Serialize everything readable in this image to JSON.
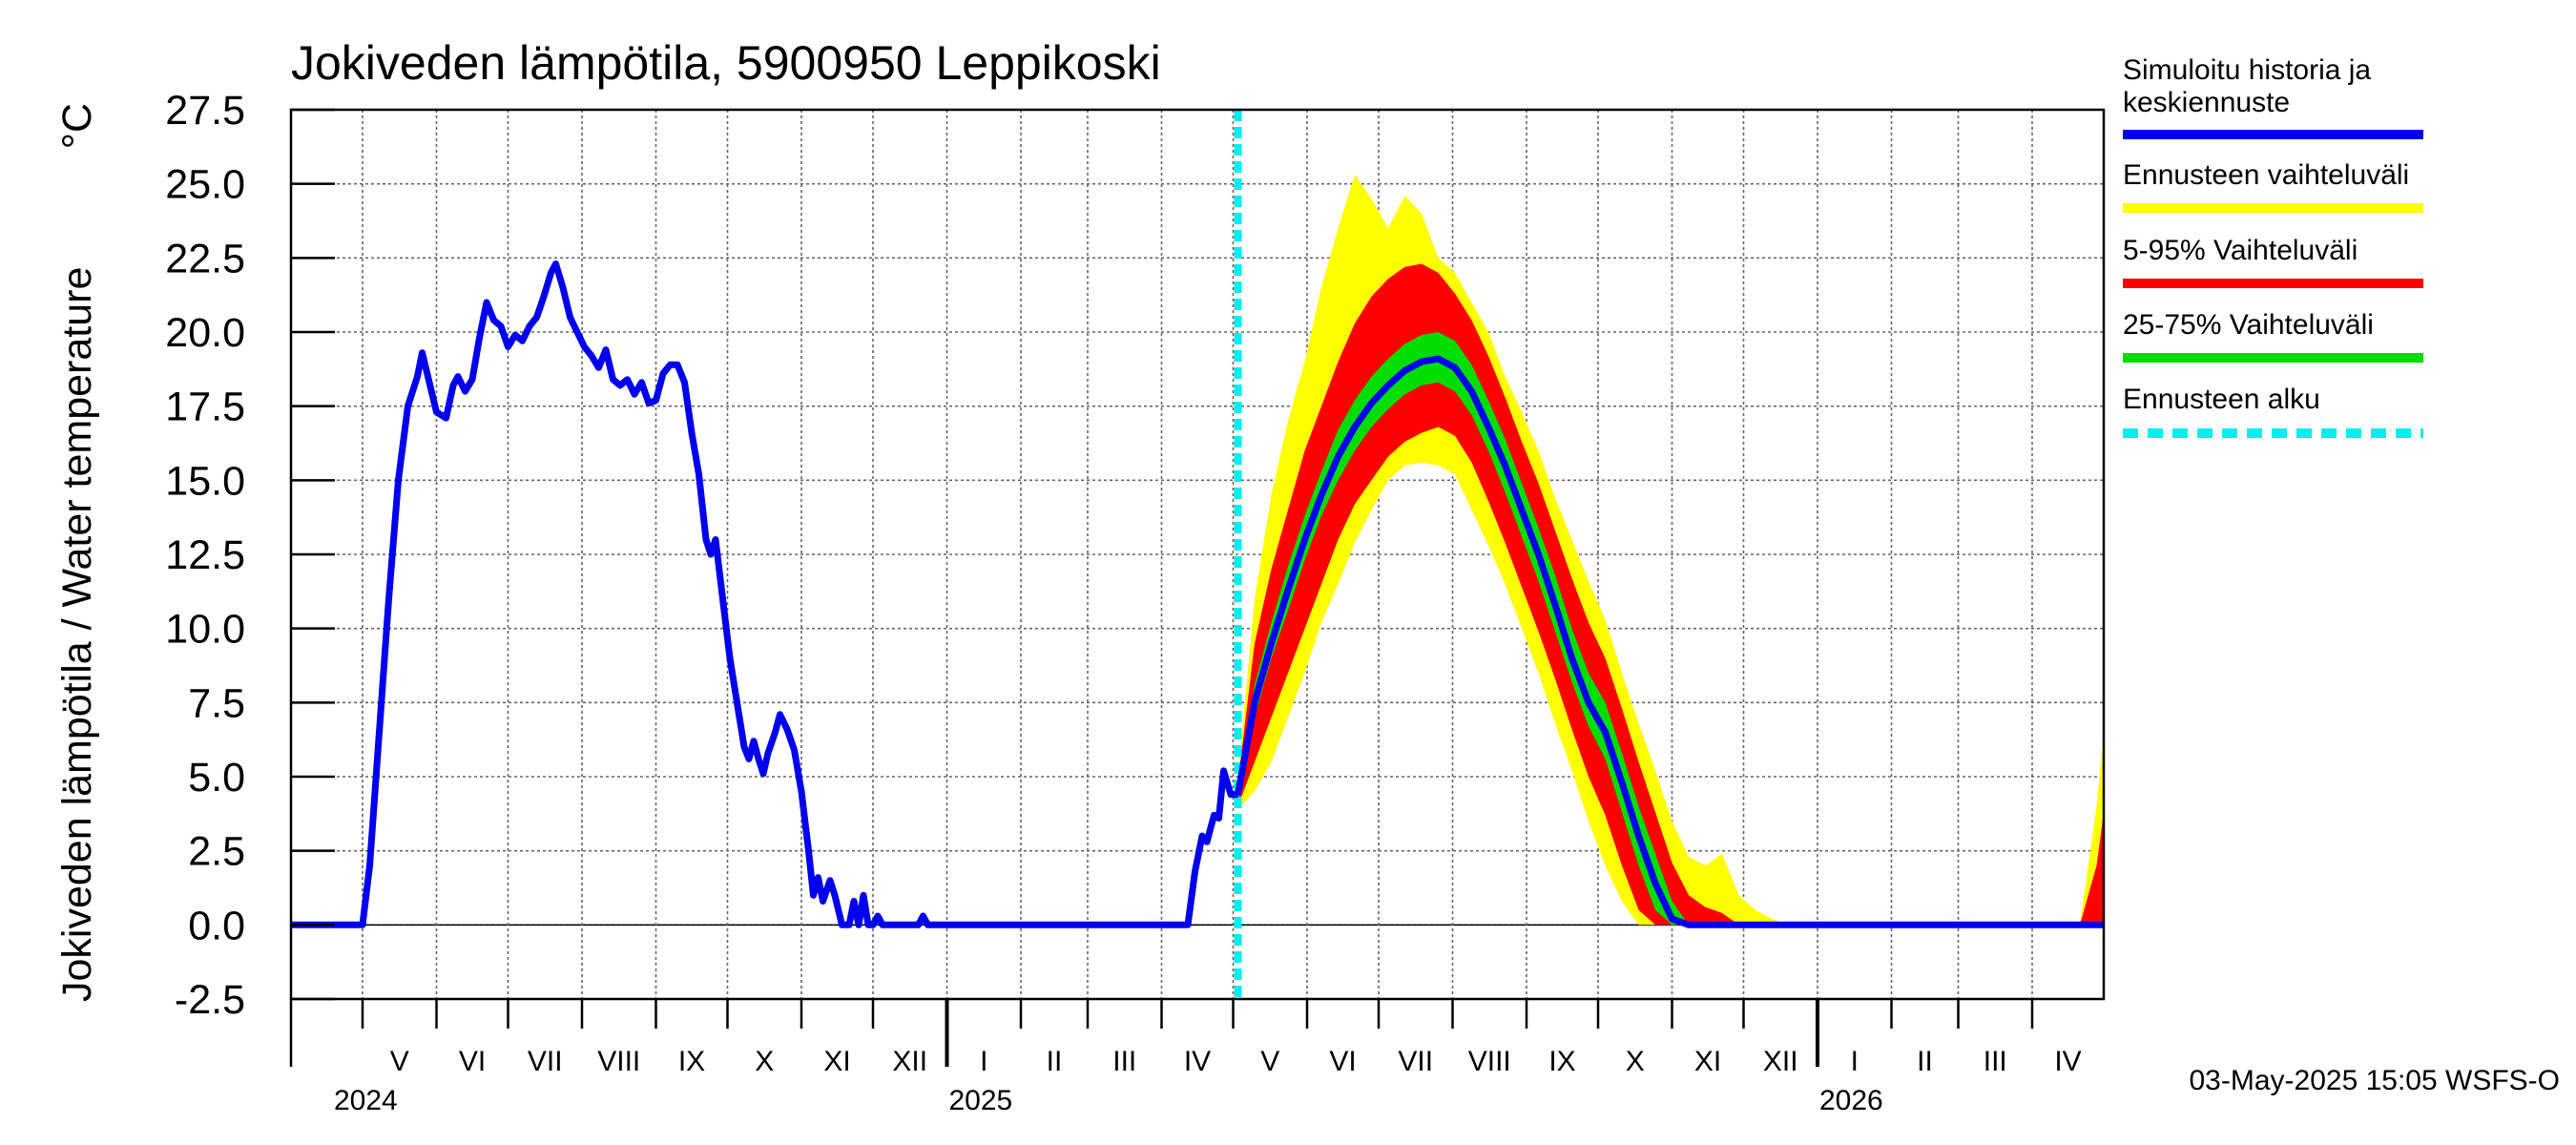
{
  "chart_data": {
    "type": "line",
    "title": "Jokiveden lämpötila, 5900950 Leppikoski",
    "ylabel": "Jokiveden lämpötila / Water temperature",
    "yunit": "°C",
    "ylim": [
      -2.5,
      27.5
    ],
    "yticks": [
      "27.5",
      "25.0",
      "22.5",
      "20.0",
      "17.5",
      "15.0",
      "12.5",
      "10.0",
      "7.5",
      "5.0",
      "2.5",
      "0.0",
      "-2.5"
    ],
    "xlim": [
      "2024-04-01",
      "2026-05-01"
    ],
    "months": [
      {
        "label": "V",
        "start": "2024-05-01"
      },
      {
        "label": "VI",
        "start": "2024-06-01"
      },
      {
        "label": "VII",
        "start": "2024-07-01"
      },
      {
        "label": "VIII",
        "start": "2024-08-01"
      },
      {
        "label": "IX",
        "start": "2024-09-01"
      },
      {
        "label": "X",
        "start": "2024-10-01"
      },
      {
        "label": "XI",
        "start": "2024-11-01"
      },
      {
        "label": "XII",
        "start": "2024-12-01"
      },
      {
        "label": "I",
        "start": "2025-01-01"
      },
      {
        "label": "II",
        "start": "2025-02-01"
      },
      {
        "label": "III",
        "start": "2025-03-01"
      },
      {
        "label": "IV",
        "start": "2025-04-01"
      },
      {
        "label": "V",
        "start": "2025-05-01"
      },
      {
        "label": "VI",
        "start": "2025-06-01"
      },
      {
        "label": "VII",
        "start": "2025-07-01"
      },
      {
        "label": "VIII",
        "start": "2025-08-01"
      },
      {
        "label": "IX",
        "start": "2025-09-01"
      },
      {
        "label": "X",
        "start": "2025-10-01"
      },
      {
        "label": "XI",
        "start": "2025-11-01"
      },
      {
        "label": "XII",
        "start": "2025-12-01"
      },
      {
        "label": "I",
        "start": "2026-01-01"
      },
      {
        "label": "II",
        "start": "2026-02-01"
      },
      {
        "label": "III",
        "start": "2026-03-01"
      },
      {
        "label": "IV",
        "start": "2026-04-01"
      }
    ],
    "years": [
      {
        "label": "2024",
        "start": "2024-04-01"
      },
      {
        "label": "2025",
        "start": "2025-01-01"
      },
      {
        "label": "2026",
        "start": "2026-01-01"
      }
    ],
    "forecast_start": "2025-05-03",
    "grid": true,
    "legend_position": "right",
    "legend": [
      {
        "label": "Simuloitu historia ja keskiennuste",
        "color": "#0000ee",
        "style": "solid"
      },
      {
        "label": "Ennusteen vaihteluväli",
        "color": "#ffff00",
        "style": "solid"
      },
      {
        "label": "5-95% Vaihteluväli",
        "color": "#ff0000",
        "style": "solid"
      },
      {
        "label": "25-75% Vaihteluväli",
        "color": "#00dd00",
        "style": "solid"
      },
      {
        "label": "Ennusteen alku",
        "color": "#00eeee",
        "style": "dashed"
      }
    ],
    "history": [
      [
        "2024-04-01",
        0
      ],
      [
        "2024-05-01",
        0
      ],
      [
        "2024-05-04",
        2.0
      ],
      [
        "2024-05-08",
        6.5
      ],
      [
        "2024-05-12",
        11.0
      ],
      [
        "2024-05-16",
        15.0
      ],
      [
        "2024-05-20",
        17.5
      ],
      [
        "2024-05-24",
        18.5
      ],
      [
        "2024-05-26",
        19.3
      ],
      [
        "2024-05-29",
        18.3
      ],
      [
        "2024-06-01",
        17.3
      ],
      [
        "2024-06-05",
        17.1
      ],
      [
        "2024-06-08",
        18.2
      ],
      [
        "2024-06-10",
        18.5
      ],
      [
        "2024-06-13",
        18.0
      ],
      [
        "2024-06-16",
        18.4
      ],
      [
        "2024-06-19",
        19.8
      ],
      [
        "2024-06-22",
        21.0
      ],
      [
        "2024-06-25",
        20.4
      ],
      [
        "2024-06-28",
        20.2
      ],
      [
        "2024-07-01",
        19.5
      ],
      [
        "2024-07-04",
        19.9
      ],
      [
        "2024-07-07",
        19.7
      ],
      [
        "2024-07-10",
        20.2
      ],
      [
        "2024-07-13",
        20.5
      ],
      [
        "2024-07-16",
        21.2
      ],
      [
        "2024-07-19",
        22.0
      ],
      [
        "2024-07-21",
        22.3
      ],
      [
        "2024-07-24",
        21.5
      ],
      [
        "2024-07-27",
        20.5
      ],
      [
        "2024-07-30",
        20.0
      ],
      [
        "2024-08-02",
        19.5
      ],
      [
        "2024-08-05",
        19.2
      ],
      [
        "2024-08-08",
        18.8
      ],
      [
        "2024-08-11",
        19.4
      ],
      [
        "2024-08-14",
        18.4
      ],
      [
        "2024-08-17",
        18.2
      ],
      [
        "2024-08-20",
        18.4
      ],
      [
        "2024-08-23",
        17.9
      ],
      [
        "2024-08-26",
        18.3
      ],
      [
        "2024-08-29",
        17.6
      ],
      [
        "2024-09-01",
        17.7
      ],
      [
        "2024-09-04",
        18.6
      ],
      [
        "2024-09-07",
        18.9
      ],
      [
        "2024-09-10",
        18.9
      ],
      [
        "2024-09-13",
        18.3
      ],
      [
        "2024-09-16",
        16.6
      ],
      [
        "2024-09-19",
        15.2
      ],
      [
        "2024-09-22",
        13.0
      ],
      [
        "2024-09-24",
        12.5
      ],
      [
        "2024-09-26",
        13.0
      ],
      [
        "2024-09-29",
        11.0
      ],
      [
        "2024-10-02",
        9.0
      ],
      [
        "2024-10-05",
        7.5
      ],
      [
        "2024-10-08",
        6.0
      ],
      [
        "2024-10-10",
        5.6
      ],
      [
        "2024-10-12",
        6.2
      ],
      [
        "2024-10-14",
        5.6
      ],
      [
        "2024-10-16",
        5.1
      ],
      [
        "2024-10-18",
        5.8
      ],
      [
        "2024-10-21",
        6.5
      ],
      [
        "2024-10-23",
        7.1
      ],
      [
        "2024-10-26",
        6.6
      ],
      [
        "2024-10-29",
        5.9
      ],
      [
        "2024-11-01",
        4.5
      ],
      [
        "2024-11-04",
        2.5
      ],
      [
        "2024-11-06",
        1.0
      ],
      [
        "2024-11-08",
        1.6
      ],
      [
        "2024-11-10",
        0.8
      ],
      [
        "2024-11-13",
        1.5
      ],
      [
        "2024-11-15",
        1.0
      ],
      [
        "2024-11-18",
        0.0
      ],
      [
        "2024-11-21",
        0.0
      ],
      [
        "2024-11-23",
        0.8
      ],
      [
        "2024-11-25",
        0.0
      ],
      [
        "2024-11-27",
        1.0
      ],
      [
        "2024-11-29",
        0.0
      ],
      [
        "2024-12-01",
        0.0
      ],
      [
        "2024-12-03",
        0.3
      ],
      [
        "2024-12-05",
        0.0
      ],
      [
        "2024-12-20",
        0.0
      ],
      [
        "2024-12-22",
        0.3
      ],
      [
        "2024-12-24",
        0.0
      ],
      [
        "2025-04-12",
        0.0
      ],
      [
        "2025-04-15",
        1.8
      ],
      [
        "2025-04-18",
        3.0
      ],
      [
        "2025-04-20",
        2.8
      ],
      [
        "2025-04-23",
        3.7
      ],
      [
        "2025-04-25",
        3.6
      ],
      [
        "2025-04-27",
        5.2
      ],
      [
        "2025-04-30",
        4.4
      ],
      [
        "2025-05-03",
        4.4
      ]
    ],
    "forecast_dates": [
      "2025-05-03",
      "2025-05-10",
      "2025-05-17",
      "2025-05-24",
      "2025-05-31",
      "2025-06-07",
      "2025-06-14",
      "2025-06-21",
      "2025-06-28",
      "2025-07-05",
      "2025-07-12",
      "2025-07-19",
      "2025-07-26",
      "2025-08-02",
      "2025-08-09",
      "2025-08-16",
      "2025-08-23",
      "2025-08-30",
      "2025-09-06",
      "2025-09-13",
      "2025-09-20",
      "2025-09-27",
      "2025-10-04",
      "2025-10-11",
      "2025-10-18",
      "2025-10-25",
      "2025-11-01",
      "2025-11-08",
      "2025-11-15",
      "2025-11-22",
      "2025-11-29",
      "2025-12-06",
      "2025-12-13",
      "2025-12-20",
      "2025-12-31"
    ],
    "forecast_mean": [
      4.4,
      7.5,
      9.5,
      11.3,
      13.0,
      14.5,
      15.8,
      16.8,
      17.6,
      18.2,
      18.7,
      19.0,
      19.1,
      18.8,
      18.0,
      16.8,
      15.5,
      14.0,
      12.5,
      10.8,
      9.0,
      7.5,
      6.5,
      4.8,
      3.0,
      1.4,
      0.2,
      0.0,
      0.0,
      0.0,
      0.0,
      0.0,
      0.0,
      0.0,
      0.0
    ],
    "forecast_p25": [
      4.3,
      7.0,
      9.0,
      10.6,
      12.3,
      13.8,
      15.0,
      16.0,
      16.8,
      17.4,
      17.9,
      18.2,
      18.3,
      18.0,
      17.2,
      16.0,
      14.6,
      13.1,
      11.6,
      9.9,
      8.2,
      6.7,
      5.6,
      3.8,
      2.0,
      0.5,
      0.0,
      0.0,
      0.0,
      0.0,
      0.0,
      0.0,
      0.0,
      0.0,
      0.0
    ],
    "forecast_p75": [
      4.6,
      8.1,
      10.2,
      12.1,
      13.8,
      15.3,
      16.7,
      17.7,
      18.5,
      19.1,
      19.6,
      19.9,
      20.0,
      19.7,
      18.9,
      17.7,
      16.4,
      14.9,
      13.4,
      11.8,
      10.0,
      8.5,
      7.5,
      5.8,
      4.0,
      2.4,
      0.8,
      0.0,
      0.0,
      0.0,
      0.0,
      0.0,
      0.0,
      0.0,
      0.0
    ],
    "forecast_p5": [
      4.0,
      5.5,
      7.0,
      8.5,
      10.0,
      11.5,
      13.0,
      14.2,
      15.0,
      15.8,
      16.3,
      16.6,
      16.8,
      16.5,
      15.6,
      14.3,
      12.9,
      11.4,
      9.9,
      8.3,
      6.6,
      5.0,
      3.7,
      2.0,
      0.5,
      0.0,
      0.0,
      0.0,
      0.0,
      0.0,
      0.0,
      0.0,
      0.0,
      0.0,
      0.0
    ],
    "forecast_p95": [
      4.8,
      9.5,
      12.0,
      14.0,
      16.0,
      17.5,
      19.0,
      20.3,
      21.2,
      21.8,
      22.2,
      22.3,
      22.0,
      21.3,
      20.4,
      19.2,
      17.8,
      16.3,
      14.9,
      13.3,
      11.7,
      10.2,
      9.0,
      7.3,
      5.5,
      3.8,
      2.1,
      1.0,
      0.6,
      0.4,
      0.0,
      0.0,
      0.0,
      0.0,
      0.0
    ],
    "forecast_min": [
      3.9,
      4.5,
      5.5,
      7.0,
      8.5,
      10.2,
      11.5,
      12.9,
      14.0,
      15.0,
      15.5,
      15.6,
      15.5,
      15.2,
      14.0,
      12.8,
      11.5,
      10.0,
      8.5,
      6.8,
      5.2,
      3.5,
      2.0,
      0.8,
      0.0,
      0.0,
      0.0,
      0.0,
      0.0,
      0.0,
      0.0,
      0.0,
      0.0,
      0.0,
      0.0
    ],
    "forecast_max": [
      5.0,
      11.0,
      14.5,
      17.0,
      19.0,
      21.5,
      23.5,
      25.3,
      24.5,
      23.5,
      24.6,
      24.0,
      22.5,
      22.0,
      21.0,
      20.0,
      18.5,
      17.3,
      16.0,
      14.4,
      13.0,
      11.6,
      10.3,
      8.5,
      6.8,
      5.2,
      3.5,
      2.3,
      2.0,
      2.4,
      1.0,
      0.5,
      0.2,
      0.0,
      0.0
    ],
    "late_window": {
      "dates": [
        "2026-04-21",
        "2026-04-28",
        "2026-05-01"
      ],
      "p5": [
        0.0,
        0.4,
        0.8
      ],
      "p95": [
        0.0,
        2.0,
        3.8
      ],
      "max": [
        0.0,
        4.0,
        6.5
      ]
    },
    "footer": "03-May-2025 15:05 WSFS-O"
  }
}
